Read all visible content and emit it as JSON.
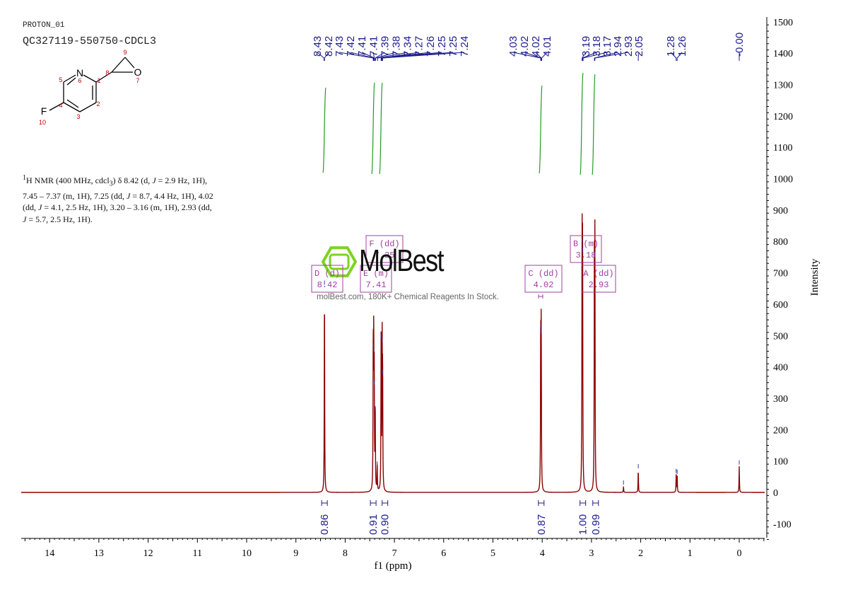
{
  "header": {
    "experiment": "PROTON_01",
    "sample": "QC327119-550750-CDCL3"
  },
  "structure": {
    "atom_labels": [
      "1",
      "2",
      "3",
      "4",
      "5",
      "6",
      "7",
      "8",
      "9",
      "10"
    ],
    "atoms": [
      "N",
      "O",
      "F"
    ]
  },
  "summary": {
    "nucleus_sup": "1",
    "line1": "H NMR (400 MHz, cdcl",
    "sub3": "3",
    "line1b": ") δ 8.42 (d, ",
    "J": "J",
    "line1c": " = 2.9 Hz, 1H),",
    "line2a": "7.45 – 7.37 (m, 1H), 7.25 (dd, ",
    "line2b": " = 8.7, 4.4 Hz, 1H), 4.02",
    "line3a": "(dd, ",
    "line3b": " = 4.1, 2.5 Hz, 1H), 3.20 – 3.16 (m, 1H), 2.93 (dd,",
    "line4b": " = 5.7, 2.5 Hz, 1H)."
  },
  "watermark": {
    "brand": "MolBest",
    "tagline": "molBest.com, 180K+ Chemical Reagents In Stock."
  },
  "chart_data": {
    "type": "line",
    "xlabel": "f1 (ppm)",
    "ylabel": "Intensity",
    "xlim": [
      14.6,
      -0.5
    ],
    "ylim": [
      -150,
      1500
    ],
    "x_ticks": [
      14,
      13,
      12,
      11,
      10,
      9,
      8,
      7,
      6,
      5,
      4,
      3,
      2,
      1,
      0
    ],
    "y_ticks": [
      -100,
      0,
      100,
      200,
      300,
      400,
      500,
      600,
      700,
      800,
      900,
      1000,
      1100,
      1200,
      1300,
      1400,
      1500
    ],
    "peaks": [
      {
        "x": 8.42,
        "y": 655
      },
      {
        "x": 7.43,
        "y": 455
      },
      {
        "x": 7.42,
        "y": 440
      },
      {
        "x": 7.41,
        "y": 335
      },
      {
        "x": 7.39,
        "y": 255
      },
      {
        "x": 7.35,
        "y": 78
      },
      {
        "x": 7.27,
        "y": 485
      },
      {
        "x": 7.25,
        "y": 470
      },
      {
        "x": 7.24,
        "y": 370
      },
      {
        "x": 4.03,
        "y": 515
      },
      {
        "x": 4.02,
        "y": 500
      },
      {
        "x": 3.19,
        "y": 790
      },
      {
        "x": 3.18,
        "y": 760
      },
      {
        "x": 2.94,
        "y": 745
      },
      {
        "x": 2.93,
        "y": 740
      },
      {
        "x": 2.35,
        "y": 18
      },
      {
        "x": 2.05,
        "y": 70
      },
      {
        "x": 1.28,
        "y": 55
      },
      {
        "x": 1.26,
        "y": 52
      },
      {
        "x": 0.0,
        "y": 82
      }
    ],
    "peak_labels": {
      "groups": [
        {
          "labels": [
            "8.43",
            "8.42"
          ]
        },
        {
          "labels": [
            "7.43",
            "7.42",
            "7.41",
            "7.41",
            "7.39",
            "7.38",
            "7.34",
            "7.27",
            "7.26",
            "7.25",
            "7.25",
            "7.24"
          ]
        },
        {
          "labels": [
            "4.03",
            "4.02",
            "4.02",
            "4.01"
          ]
        },
        {
          "labels": [
            "3.19",
            "3.18",
            "3.17",
            "2.94",
            "2.93",
            "2.05"
          ]
        },
        {
          "labels": [
            "1.28",
            "1.26"
          ]
        },
        {
          "labels": [
            "-0.00"
          ]
        }
      ]
    },
    "integrals": [
      {
        "x": 8.42,
        "value": "0.86"
      },
      {
        "x": 7.41,
        "value": "0.91"
      },
      {
        "x": 7.25,
        "value": "0.90"
      },
      {
        "x": 4.02,
        "value": "0.87"
      },
      {
        "x": 3.18,
        "value": "1.00"
      },
      {
        "x": 2.93,
        "value": "0.99"
      }
    ],
    "multiplets": [
      {
        "name": "D (d)",
        "shift": "8.42"
      },
      {
        "name": "E (m)",
        "shift": "7.41"
      },
      {
        "name": "F (dd)",
        "shift": "7.25"
      },
      {
        "name": "C (dd)",
        "shift": "4.02"
      },
      {
        "name": "B (m)",
        "shift": "3.18"
      },
      {
        "name": "A (dd)",
        "shift": "2.93"
      }
    ]
  }
}
